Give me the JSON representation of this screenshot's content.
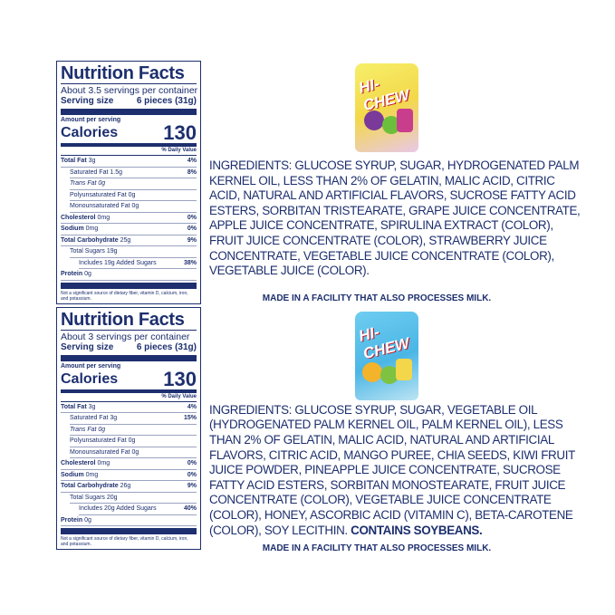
{
  "panels": [
    {
      "title": "Nutrition Facts",
      "servings": "About 3.5 servings per container",
      "serving_size_label": "Serving size",
      "serving_size": "6 pieces (31g)",
      "amount_per_serving": "Amount per serving",
      "calories_label": "Calories",
      "calories": "130",
      "daily_value": "% Daily Value",
      "rows": [
        {
          "n": "Total Fat",
          "a": "3g",
          "d": "4%"
        },
        {
          "n": "Saturated Fat 1.5g",
          "d": "8%"
        },
        {
          "n": "Trans Fat 0g",
          "d": ""
        },
        {
          "n": "Polyunsaturated Fat 0g",
          "d": ""
        },
        {
          "n": "Monounsaturated Fat 0g",
          "d": ""
        },
        {
          "n": "Cholesterol",
          "a": "0mg",
          "d": "0%"
        },
        {
          "n": "Sodium",
          "a": "0mg",
          "d": "0%"
        },
        {
          "n": "Total Carbohydrate",
          "a": "25g",
          "d": "9%"
        },
        {
          "n": "Total Sugars 19g",
          "d": ""
        },
        {
          "n": "Includes 19g Added Sugars",
          "d": "38%"
        },
        {
          "n": "Protein",
          "a": "0g",
          "d": ""
        }
      ],
      "footnote": "Not a significant source of dietary fiber, vitamin D, calcium, iron, and potassium."
    },
    {
      "title": "Nutrition Facts",
      "servings": "About 3 servings per container",
      "serving_size_label": "Serving size",
      "serving_size": "6 pieces (31g)",
      "amount_per_serving": "Amount per serving",
      "calories_label": "Calories",
      "calories": "130",
      "daily_value": "% Daily Value",
      "rows": [
        {
          "n": "Total Fat",
          "a": "3g",
          "d": "4%"
        },
        {
          "n": "Saturated Fat 3g",
          "d": "15%"
        },
        {
          "n": "Trans Fat 0g",
          "d": ""
        },
        {
          "n": "Polyunsaturated Fat 0g",
          "d": ""
        },
        {
          "n": "Monounsaturated Fat 0g",
          "d": ""
        },
        {
          "n": "Cholesterol",
          "a": "0mg",
          "d": "0%"
        },
        {
          "n": "Sodium",
          "a": "0mg",
          "d": "0%"
        },
        {
          "n": "Total Carbohydrate",
          "a": "26g",
          "d": "9%"
        },
        {
          "n": "Total Sugars 20g",
          "d": ""
        },
        {
          "n": "Includes 20g Added Sugars",
          "d": "40%"
        },
        {
          "n": "Protein",
          "a": "0g",
          "d": ""
        }
      ],
      "footnote": "Not a significant source of dietary fiber, vitamin D, calcium, iron, and potassium."
    }
  ],
  "products": [
    {
      "logo": "HI-CHEW",
      "ingredients": "INGREDIENTS: GLUCOSE SYRUP, SUGAR, HYDROGENATED PALM\nKERNEL OIL, LESS THAN 2% OF GELATIN, MALIC ACID, CITRIC\nACID, NATURAL AND ARTIFICIAL FLAVORS, SUCROSE FATTY ACID\nESTERS, SORBITAN TRISTEARATE, GRAPE JUICE CONCENTRATE,\nAPPLE JUICE CONCENTRATE, SPIRULINA EXTRACT (COLOR),\nFRUIT JUICE CONCENTRATE (COLOR), STRAWBERRY JUICE\nCONCENTRATE, VEGETABLE JUICE CONCENTRATE (COLOR),\nVEGETABLE JUICE (COLOR).",
      "contains": "",
      "made": "MADE IN A FACILITY THAT ALSO PROCESSES MILK."
    },
    {
      "logo": "HI-CHEW",
      "ingredients": "INGREDIENTS: GLUCOSE SYRUP, SUGAR, VEGETABLE OIL\n(HYDROGENATED PALM KERNEL OIL, PALM KERNEL OIL), LESS\nTHAN 2% OF GELATIN, MALIC ACID, NATURAL AND ARTIFICIAL\nFLAVORS, CITRIC ACID, MANGO PUREE, CHIA SEEDS, KIWI FRUIT\nJUICE POWDER, PINEAPPLE JUICE CONCENTRATE, SUCROSE\nFATTY ACID ESTERS, SORBITAN MONOSTEARATE, FRUIT JUICE\nCONCENTRATE (COLOR), VEGETABLE JUICE CONCENTRATE\n(COLOR), HONEY, ASCORBIC ACID (VITAMIN C), BETA-CAROTENE\n(COLOR), SOY LECITHIN. ",
      "contains": "CONTAINS SOYBEANS.",
      "made": "MADE IN A FACILITY THAT ALSO PROCESSES MILK."
    }
  ]
}
